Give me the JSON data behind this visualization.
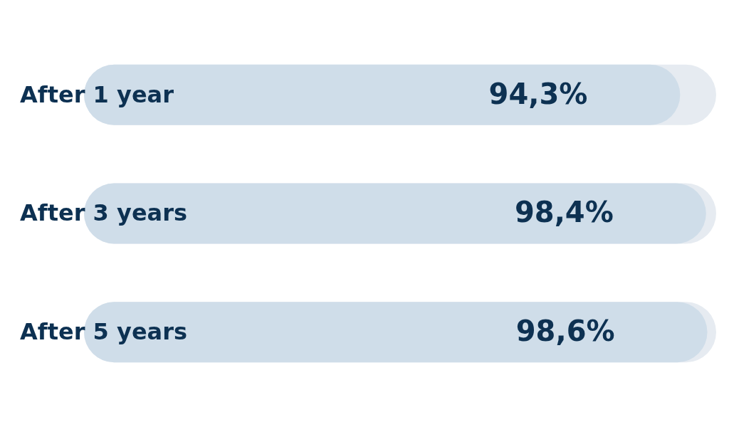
{
  "chart_data": {
    "type": "bar",
    "orientation": "horizontal",
    "categories": [
      "After 1 year",
      "After 3 years",
      "After 5 years"
    ],
    "values": [
      94.3,
      98.4,
      98.6
    ],
    "color": "#cfdde9",
    "value_labels": [
      "94,3%",
      "98,4%",
      "98,6%"
    ],
    "xlim": [
      0,
      100
    ],
    "tick_labels": "y",
    "grid": false,
    "legend": false
  }
}
